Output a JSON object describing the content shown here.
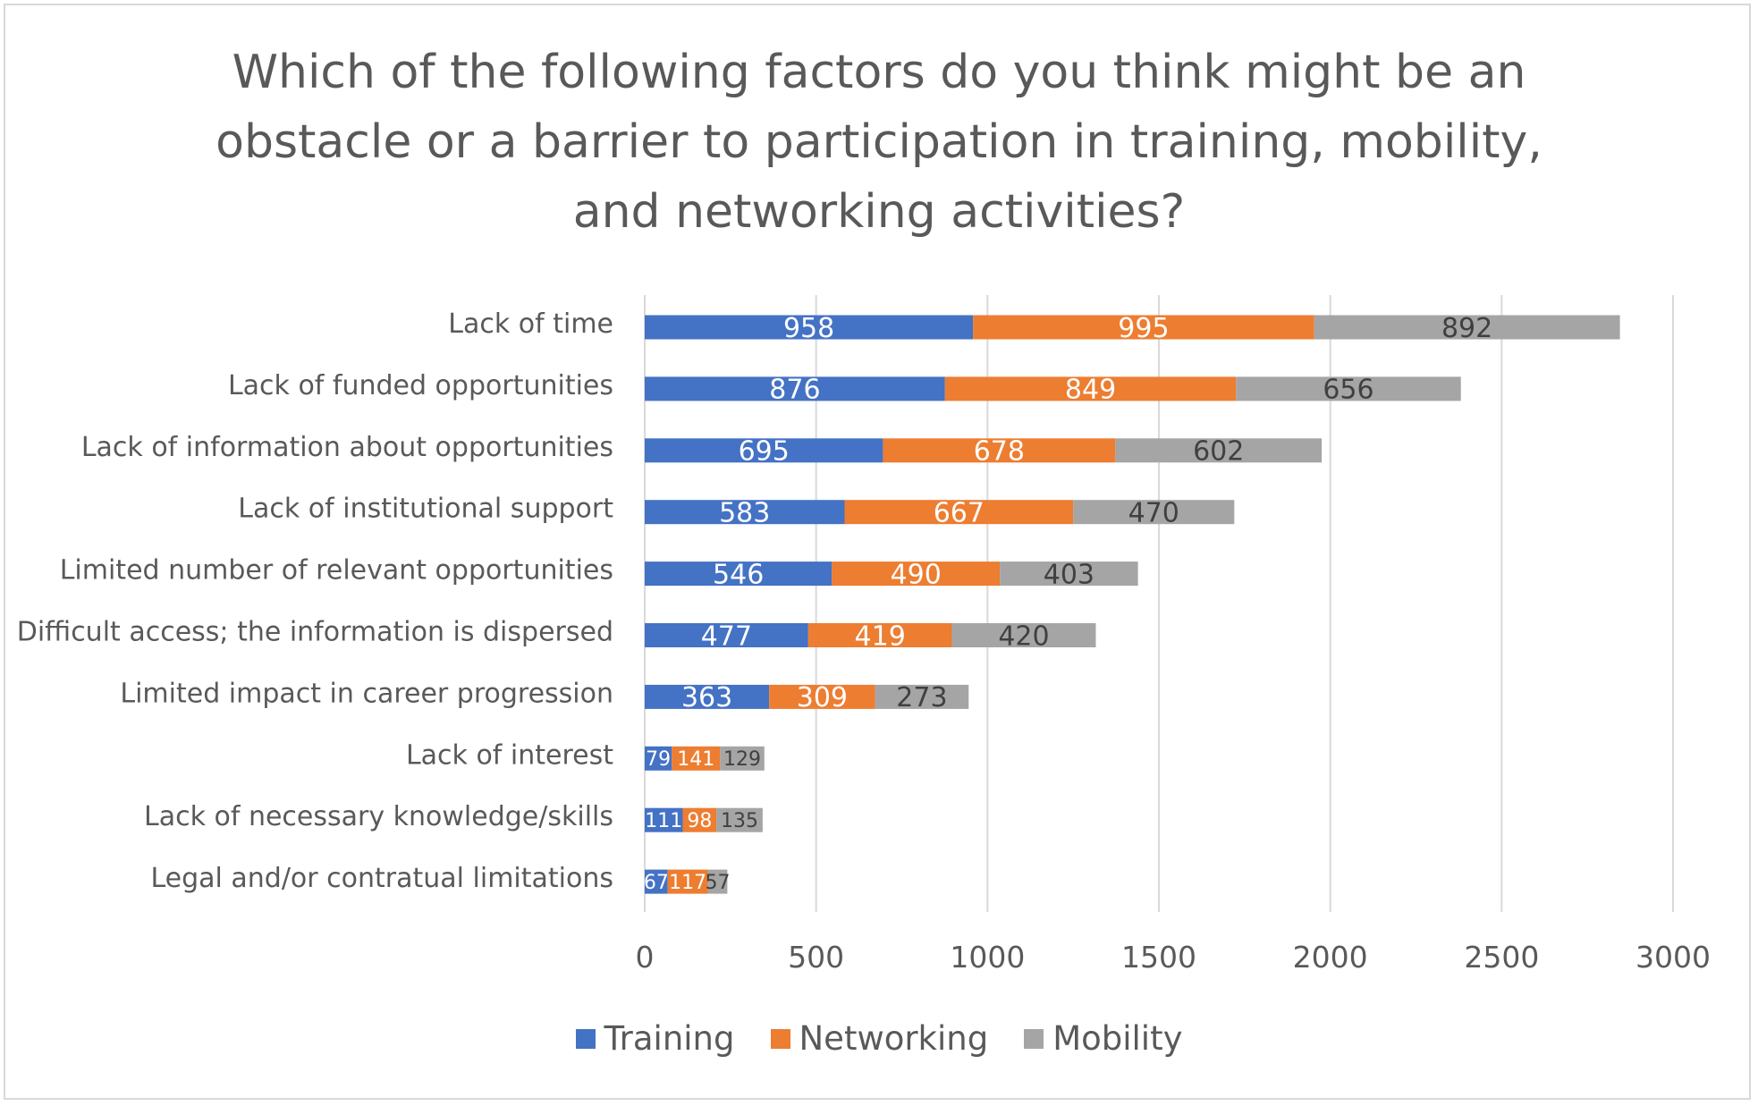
{
  "chart_data": {
    "type": "bar",
    "orientation": "horizontal",
    "stacked": true,
    "title_lines": [
      "Which of the following factors do you think might be an",
      "obstacle or a barrier to participation in training, mobility,",
      "and networking activities?"
    ],
    "categories": [
      "Lack of time",
      "Lack of funded opportunities",
      "Lack of information about opportunities",
      "Lack of institutional support",
      "Limited number of relevant opportunities",
      "Difficult access; the information is dispersed",
      "Limited impact in career progression",
      "Lack of interest",
      "Lack of necessary knowledge/skills",
      "Legal and/or contratual limitations"
    ],
    "series": [
      {
        "name": "Training",
        "color": "#4472c4",
        "label_color": "#ffffff",
        "values": [
          958,
          876,
          695,
          583,
          546,
          477,
          363,
          79,
          111,
          67
        ]
      },
      {
        "name": "Networking",
        "color": "#ed7d31",
        "label_color": "#ffffff",
        "values": [
          995,
          849,
          678,
          667,
          490,
          419,
          309,
          141,
          98,
          117
        ]
      },
      {
        "name": "Mobility",
        "color": "#a5a5a5",
        "label_color": "#404040",
        "values": [
          892,
          656,
          602,
          470,
          403,
          420,
          273,
          129,
          135,
          57
        ]
      }
    ],
    "xlim": [
      0,
      3000
    ],
    "xticks": [
      0,
      500,
      1000,
      1500,
      2000,
      2500,
      3000
    ],
    "grid": "vertical",
    "legend_position": "bottom"
  }
}
